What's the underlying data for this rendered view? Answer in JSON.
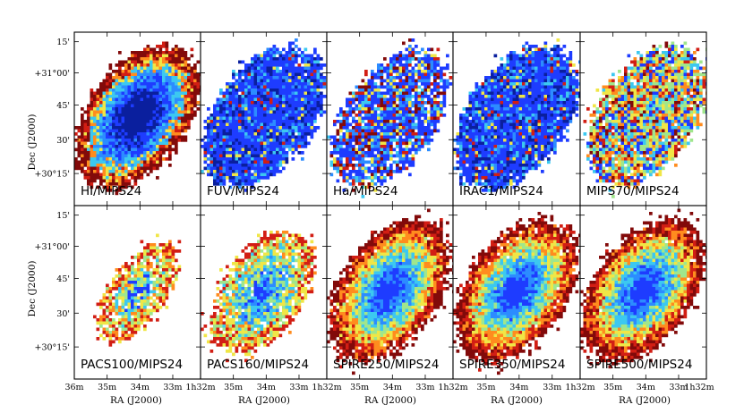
{
  "figure": {
    "y_axis_title": "Dec (J2000)",
    "x_axis_title": "RA (J2000)",
    "y_ticks": [
      "15'",
      "+31°00'",
      "45'",
      "30'",
      "+30°15'"
    ],
    "x_ticks_first": [
      "36m",
      "35m",
      "34m",
      "33m"
    ],
    "x_ticks_other": [
      "35m",
      "34m",
      "33m"
    ],
    "x_tick_end": "1h32m"
  },
  "panels": [
    {
      "label": "HI/MIPS24",
      "style": "hi"
    },
    {
      "label": "FUV/MIPS24",
      "style": "fuv"
    },
    {
      "label": "Ha/MIPS24",
      "style": "ha"
    },
    {
      "label": "IRAC1/MIPS24",
      "style": "irac"
    },
    {
      "label": "MIPS70/MIPS24",
      "style": "mips70"
    },
    {
      "label": "PACS100/MIPS24",
      "style": "pacs100"
    },
    {
      "label": "PACS160/MIPS24",
      "style": "pacs160"
    },
    {
      "label": "SPIRE250/MIPS24",
      "style": "spire"
    },
    {
      "label": "SPIRE350/MIPS24",
      "style": "spire"
    },
    {
      "label": "SPIRE500/MIPS24",
      "style": "spire"
    }
  ],
  "colors": {
    "dark_blue": "#0a1f9e",
    "blue": "#1e3cff",
    "light_blue": "#2c8cff",
    "cyan": "#3cc8f0",
    "green": "#a0e68c",
    "yellow": "#f0e646",
    "orange": "#ff8c1e",
    "red": "#d21e14",
    "dark_red": "#820a0a"
  }
}
